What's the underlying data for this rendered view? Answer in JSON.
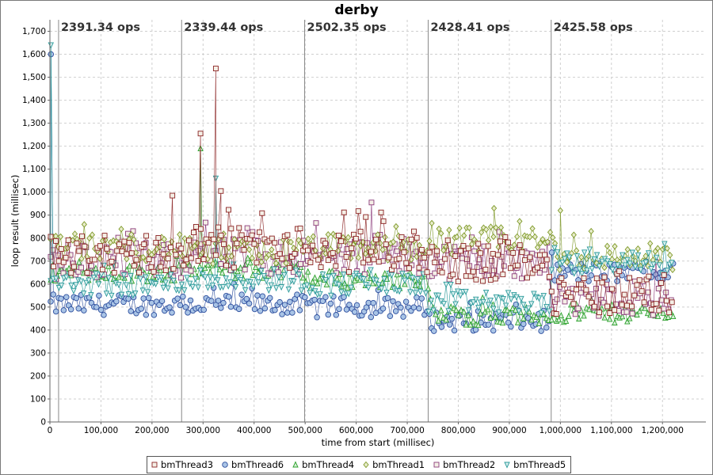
{
  "chart_data": {
    "type": "scatter",
    "title": "derby",
    "xlabel": "time from start (millisec)",
    "ylabel": "loop result (millisec)",
    "xlim": [
      0,
      1285000
    ],
    "ylim": [
      0,
      1750
    ],
    "x_ticks": [
      "0",
      "100,000",
      "200,000",
      "300,000",
      "400,000",
      "500,000",
      "600,000",
      "700,000",
      "800,000",
      "900,000",
      "1,000,000",
      "1,100,000",
      "1,200,000"
    ],
    "y_ticks": [
      "0",
      "100",
      "200",
      "300",
      "400",
      "500",
      "600",
      "700",
      "800",
      "900",
      "1,000",
      "1,100",
      "1,200",
      "1,300",
      "1,400",
      "1,500",
      "1,600",
      "1,700"
    ],
    "grid": true,
    "legend_position": "bottom",
    "phase_markers": [
      {
        "x": 17000,
        "label": "2391.34 ops"
      },
      {
        "x": 258000,
        "label": "2339.44 ops"
      },
      {
        "x": 499000,
        "label": "2502.35 ops"
      },
      {
        "x": 741000,
        "label": "2428.41 ops"
      },
      {
        "x": 982000,
        "label": "2425.58 ops"
      }
    ],
    "x_extent": [
      0,
      1222000
    ],
    "series": [
      {
        "name": "bmThread3",
        "color": "#8b2323",
        "marker": "square",
        "levels_by_phase": [
          730,
          760,
          740,
          700,
          560
        ],
        "spread": 90,
        "spikes": [
          [
            295000,
            1255
          ],
          [
            325000,
            1538
          ],
          [
            335000,
            1005
          ],
          [
            240000,
            985
          ]
        ]
      },
      {
        "name": "bmThread6",
        "color": "#2e4f9e",
        "marker": "circle",
        "levels_by_phase": [
          510,
          510,
          500,
          440,
          650
        ],
        "spread": 45,
        "spikes": [
          [
            2000,
            1600
          ]
        ]
      },
      {
        "name": "bmThread4",
        "color": "#2aa02a",
        "marker": "triangle-up",
        "levels_by_phase": [
          650,
          660,
          620,
          460,
          470
        ],
        "spread": 40,
        "spikes": [
          [
            295000,
            1190
          ]
        ]
      },
      {
        "name": "bmThread1",
        "color": "#7f9a2a",
        "marker": "diamond",
        "levels_by_phase": [
          760,
          740,
          760,
          790,
          720
        ],
        "spread": 60,
        "spikes": [
          [
            870000,
            930
          ],
          [
            1000000,
            920
          ]
        ]
      },
      {
        "name": "bmThread2",
        "color": "#8b3a7a",
        "marker": "square",
        "levels_by_phase": [
          700,
          720,
          720,
          700,
          540
        ],
        "spread": 80,
        "spikes": [
          [
            630000,
            955
          ]
        ]
      },
      {
        "name": "bmThread5",
        "color": "#2b9a9a",
        "marker": "triangle-down",
        "levels_by_phase": [
          600,
          620,
          600,
          520,
          690
        ],
        "spread": 50,
        "spikes": [
          [
            2000,
            1640
          ],
          [
            325000,
            1060
          ]
        ]
      }
    ]
  }
}
